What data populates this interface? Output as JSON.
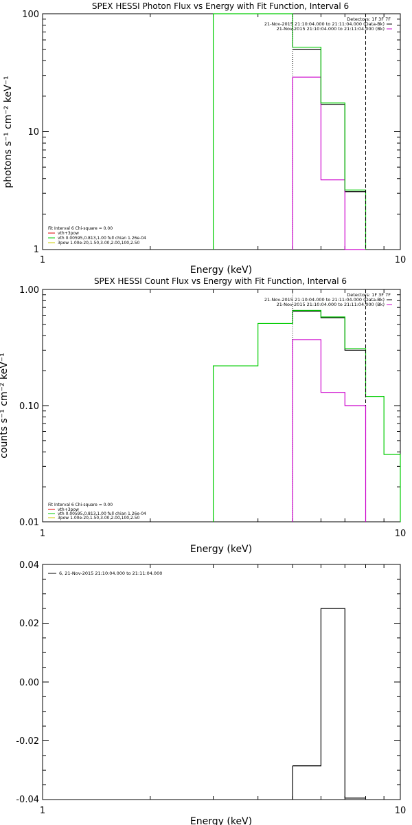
{
  "colors": {
    "black": "#000000",
    "green": "#00cc00",
    "magenta": "#cc00cc",
    "red": "#dd0000",
    "yellow": "#cccc00"
  },
  "chart_data": [
    {
      "type": "line",
      "title": "SPEX HESSI Photon Flux vs Energy with Fit Function, Interval 6",
      "xlabel": "Energy (keV)",
      "ylabel": "photons s⁻¹ cm⁻² keV⁻¹",
      "xscale": "log",
      "yscale": "log",
      "xlim": [
        1,
        10
      ],
      "ylim": [
        1,
        100
      ],
      "x_ticks": [
        "1",
        "10"
      ],
      "y_ticks": [
        "1",
        "10",
        "100"
      ],
      "fit_range_keV": [
        5.0,
        8.0
      ],
      "legend_top_right": [
        "Detectors: 1F 3F 7F",
        "21-Nov-2015 21:10:04.000 to 21:11:04.000 (Data-Bk)",
        "21-Nov-2015 21:10:04.000 to 21:11:04.000 (Bk)"
      ],
      "legend_bottom_left": [
        "Fit Interval  6   Chi-square = 0.00",
        "vth+3pow",
        "vth 0.00595,0.813,1.00  full chian 1.26e-04",
        "3pow 1.00e-20,1.50,3.00,2.00,100,2.50"
      ],
      "series": [
        {
          "name": "21-Nov-2015 21:10:04.000 to 21:11:04.000 (Data-Bk)",
          "color": "black",
          "edges": [
            5.0,
            6.0,
            7.0,
            8.0
          ],
          "values": [
            50,
            17,
            3.1
          ]
        },
        {
          "name": "21-Nov-2015 21:10:04.000 to 21:11:04.000 (Bk)",
          "color": "magenta",
          "edges": [
            5.0,
            6.0,
            7.0,
            8.0
          ],
          "values": [
            29,
            3.9,
            1.0
          ]
        },
        {
          "name": "vth 0.00595,0.813,1.00  full chian 1.26e-04",
          "color": "green",
          "edges": [
            3.0,
            5.0,
            6.0,
            7.0,
            8.0
          ],
          "values": [
            100,
            52,
            17.5,
            3.2
          ]
        }
      ]
    },
    {
      "type": "line",
      "title": "SPEX HESSI Count Flux vs Energy with Fit Function, Interval 6",
      "xlabel": "Energy (keV)",
      "ylabel": "counts s⁻¹ cm⁻² keV⁻¹",
      "xscale": "log",
      "yscale": "log",
      "xlim": [
        1,
        10
      ],
      "ylim": [
        0.01,
        1.0
      ],
      "x_ticks": [
        "1",
        "10"
      ],
      "y_ticks": [
        "0.01",
        "0.10",
        "1.00"
      ],
      "fit_range_keV": [
        5.0,
        8.0
      ],
      "legend_top_right": [
        "Detectors: 1F 3F 7F",
        "21-Nov-2015 21:10:04.000 to 21:11:04.000 (Data-Bk)",
        "21-Nov-2015 21:10:04.000 to 21:11:04.000 (Bk)"
      ],
      "legend_bottom_left": [
        "Fit Interval  6   Chi-square = 0.00",
        "vth+3pow",
        "vth 0.00595,0.813,1.00  full chian 1.26e-04",
        "3pow 1.00e-20,1.50,3.00,2.00,100,2.50"
      ],
      "series": [
        {
          "name": "21-Nov-2015 21:10:04.000 to 21:11:04.000 (Data-Bk)",
          "color": "black",
          "edges": [
            5.0,
            6.0,
            7.0,
            8.0
          ],
          "values": [
            0.65,
            0.57,
            0.3
          ]
        },
        {
          "name": "21-Nov-2015 21:10:04.000 to 21:11:04.000 (Bk)",
          "color": "magenta",
          "edges": [
            5.0,
            6.0,
            7.0,
            8.0
          ],
          "values": [
            0.37,
            0.13,
            0.1
          ]
        },
        {
          "name": "vth 0.00595,0.813,1.00  full chian 1.26e-04",
          "color": "green",
          "edges": [
            3.0,
            4.0,
            5.0,
            6.0,
            7.0,
            8.0,
            9.0,
            10.0
          ],
          "values": [
            0.22,
            0.51,
            0.66,
            0.58,
            0.31,
            0.12,
            0.038
          ]
        }
      ]
    },
    {
      "type": "line",
      "title": "",
      "xlabel": "Energy (keV)",
      "ylabel": "",
      "xscale": "log",
      "yscale": "linear",
      "xlim": [
        1,
        10
      ],
      "ylim": [
        -0.04,
        0.04
      ],
      "x_ticks": [
        "1",
        "10"
      ],
      "y_ticks": [
        "-0.04",
        "-0.02",
        "0.00",
        "0.02",
        "0.04"
      ],
      "legend": [
        "6, 21-Nov-2015 21:10:04.000 to 21:11:04.000"
      ],
      "series": [
        {
          "name": "6, 21-Nov-2015 21:10:04.000 to 21:11:04.000",
          "color": "black",
          "edges": [
            5.0,
            6.0,
            7.0,
            8.0
          ],
          "values": [
            -0.0285,
            0.025,
            -0.0395
          ]
        }
      ]
    }
  ]
}
